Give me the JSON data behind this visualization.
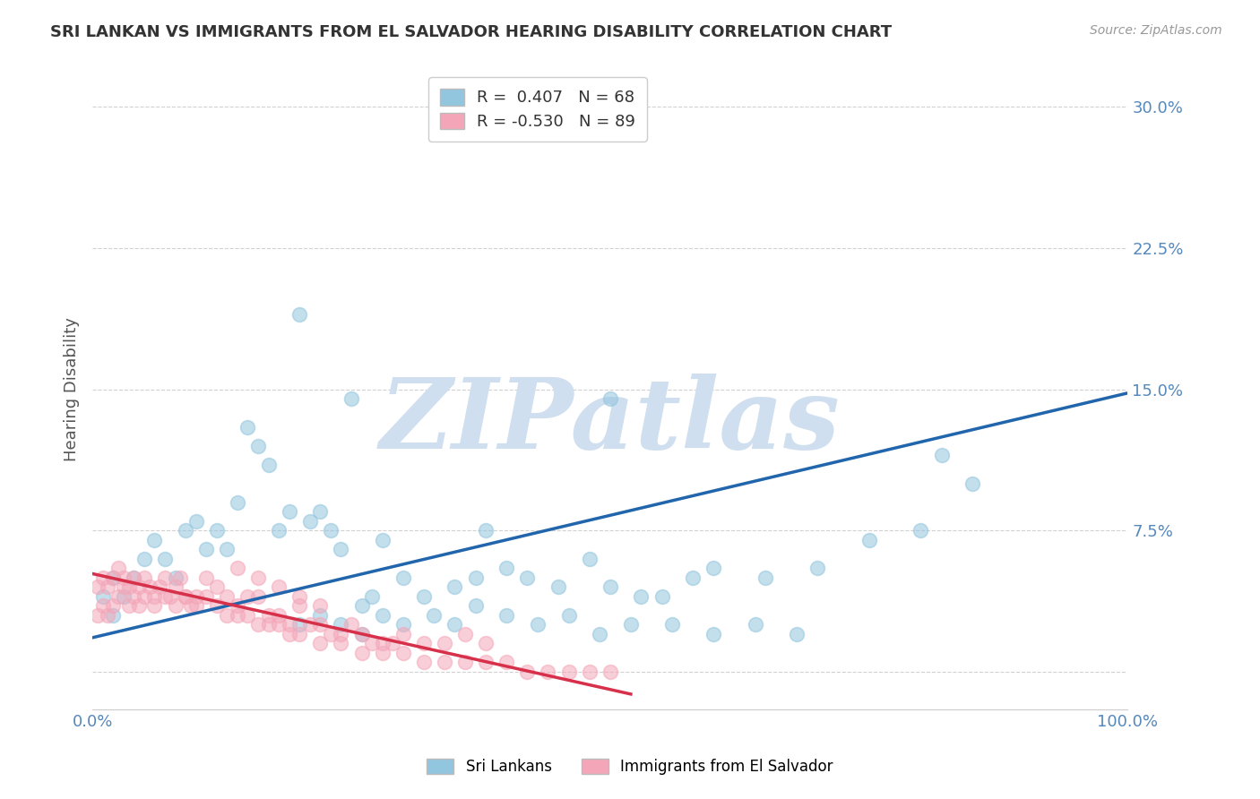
{
  "title": "SRI LANKAN VS IMMIGRANTS FROM EL SALVADOR HEARING DISABILITY CORRELATION CHART",
  "source": "Source: ZipAtlas.com",
  "ylabel": "Hearing Disability",
  "xlim": [
    0,
    1.0
  ],
  "ylim": [
    -0.02,
    0.32
  ],
  "yticks": [
    0.0,
    0.075,
    0.15,
    0.225,
    0.3
  ],
  "ytick_labels": [
    "",
    "7.5%",
    "15.0%",
    "22.5%",
    "30.0%"
  ],
  "xticks": [
    0.0,
    1.0
  ],
  "xtick_labels": [
    "0.0%",
    "100.0%"
  ],
  "blue_R": "0.407",
  "blue_N": "68",
  "pink_R": "-0.530",
  "pink_N": "89",
  "blue_color": "#92c5de",
  "pink_color": "#f4a6b8",
  "trend_blue": "#2166ac",
  "trend_pink": "#d6304a",
  "watermark": "ZIPatlas",
  "watermark_color": "#d0dff0",
  "legend_label_blue": "Sri Lankans",
  "legend_label_pink": "Immigrants from El Salvador",
  "blue_scatter_x": [
    0.01,
    0.02,
    0.02,
    0.03,
    0.04,
    0.05,
    0.06,
    0.07,
    0.08,
    0.09,
    0.1,
    0.11,
    0.12,
    0.13,
    0.14,
    0.15,
    0.16,
    0.17,
    0.18,
    0.19,
    0.2,
    0.21,
    0.22,
    0.23,
    0.24,
    0.25,
    0.26,
    0.27,
    0.28,
    0.3,
    0.32,
    0.35,
    0.37,
    0.4,
    0.42,
    0.45,
    0.48,
    0.5,
    0.53,
    0.55,
    0.58,
    0.6,
    0.65,
    0.7,
    0.75,
    0.8,
    0.82,
    0.85,
    0.5,
    0.38,
    0.2,
    0.22,
    0.24,
    0.26,
    0.28,
    0.3,
    0.33,
    0.35,
    0.37,
    0.4,
    0.43,
    0.46,
    0.49,
    0.52,
    0.56,
    0.6,
    0.64,
    0.68
  ],
  "blue_scatter_y": [
    0.04,
    0.03,
    0.05,
    0.04,
    0.05,
    0.06,
    0.07,
    0.06,
    0.05,
    0.075,
    0.08,
    0.065,
    0.075,
    0.065,
    0.09,
    0.13,
    0.12,
    0.11,
    0.075,
    0.085,
    0.19,
    0.08,
    0.085,
    0.075,
    0.065,
    0.145,
    0.035,
    0.04,
    0.07,
    0.05,
    0.04,
    0.045,
    0.05,
    0.055,
    0.05,
    0.045,
    0.06,
    0.045,
    0.04,
    0.04,
    0.05,
    0.055,
    0.05,
    0.055,
    0.07,
    0.075,
    0.115,
    0.1,
    0.145,
    0.075,
    0.025,
    0.03,
    0.025,
    0.02,
    0.03,
    0.025,
    0.03,
    0.025,
    0.035,
    0.03,
    0.025,
    0.03,
    0.02,
    0.025,
    0.025,
    0.02,
    0.025,
    0.02
  ],
  "pink_scatter_x": [
    0.005,
    0.01,
    0.015,
    0.02,
    0.025,
    0.03,
    0.035,
    0.04,
    0.045,
    0.05,
    0.055,
    0.06,
    0.065,
    0.07,
    0.075,
    0.08,
    0.085,
    0.09,
    0.095,
    0.1,
    0.11,
    0.12,
    0.13,
    0.14,
    0.15,
    0.16,
    0.17,
    0.18,
    0.19,
    0.2,
    0.21,
    0.22,
    0.23,
    0.24,
    0.25,
    0.26,
    0.27,
    0.28,
    0.29,
    0.3,
    0.32,
    0.34,
    0.36,
    0.38,
    0.005,
    0.01,
    0.015,
    0.02,
    0.025,
    0.03,
    0.035,
    0.04,
    0.045,
    0.05,
    0.06,
    0.07,
    0.08,
    0.09,
    0.1,
    0.11,
    0.12,
    0.13,
    0.14,
    0.15,
    0.16,
    0.17,
    0.18,
    0.19,
    0.2,
    0.22,
    0.24,
    0.26,
    0.28,
    0.3,
    0.32,
    0.34,
    0.36,
    0.38,
    0.4,
    0.42,
    0.44,
    0.46,
    0.48,
    0.5,
    0.14,
    0.16,
    0.18,
    0.2,
    0.22
  ],
  "pink_scatter_y": [
    0.045,
    0.05,
    0.045,
    0.05,
    0.055,
    0.05,
    0.045,
    0.05,
    0.045,
    0.05,
    0.045,
    0.04,
    0.045,
    0.05,
    0.04,
    0.045,
    0.05,
    0.04,
    0.035,
    0.04,
    0.05,
    0.045,
    0.04,
    0.03,
    0.04,
    0.04,
    0.025,
    0.03,
    0.025,
    0.035,
    0.025,
    0.025,
    0.02,
    0.02,
    0.025,
    0.02,
    0.015,
    0.015,
    0.015,
    0.02,
    0.015,
    0.015,
    0.02,
    0.015,
    0.03,
    0.035,
    0.03,
    0.035,
    0.04,
    0.045,
    0.035,
    0.04,
    0.035,
    0.04,
    0.035,
    0.04,
    0.035,
    0.04,
    0.035,
    0.04,
    0.035,
    0.03,
    0.035,
    0.03,
    0.025,
    0.03,
    0.025,
    0.02,
    0.02,
    0.015,
    0.015,
    0.01,
    0.01,
    0.01,
    0.005,
    0.005,
    0.005,
    0.005,
    0.005,
    0.0,
    0.0,
    0.0,
    0.0,
    0.0,
    0.055,
    0.05,
    0.045,
    0.04,
    0.035
  ],
  "blue_trend_x": [
    0.0,
    1.0
  ],
  "blue_trend_y": [
    0.018,
    0.148
  ],
  "pink_trend_x": [
    0.0,
    0.52
  ],
  "pink_trend_y": [
    0.052,
    -0.012
  ],
  "background_color": "#ffffff",
  "grid_color": "#cccccc",
  "title_color": "#333333",
  "axis_color": "#5588bb"
}
